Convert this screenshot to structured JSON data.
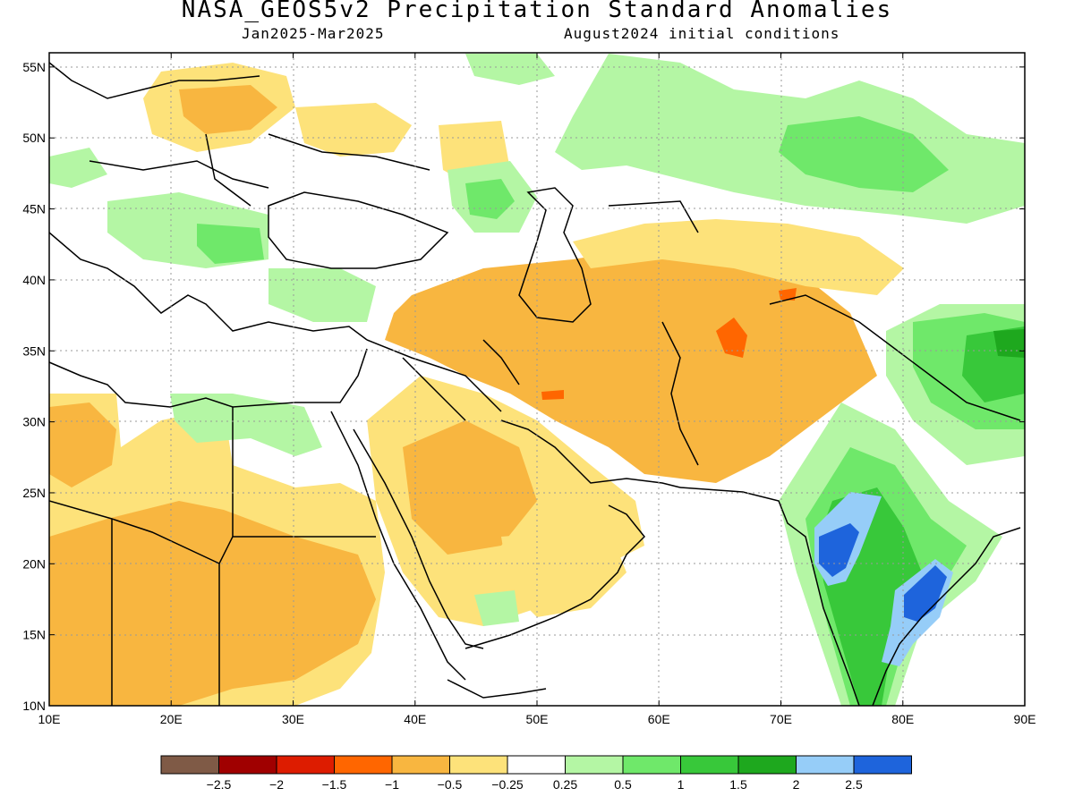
{
  "header": {
    "title": "NASA_GEOS5v2 Precipitation Standard Anomalies",
    "period": "Jan2025-Mar2025",
    "init": "August2024 initial conditions"
  },
  "map": {
    "lat_labels": [
      "55N",
      "50N",
      "45N",
      "40N",
      "35N",
      "30N",
      "25N",
      "20N",
      "15N",
      "10N"
    ],
    "lon_labels": [
      "10E",
      "20E",
      "30E",
      "40E",
      "50E",
      "60E",
      "70E",
      "80E",
      "90E"
    ],
    "lat_values": [
      55,
      50,
      45,
      40,
      35,
      30,
      25,
      20,
      15,
      10
    ],
    "lon_values": [
      10,
      20,
      30,
      40,
      50,
      60,
      70,
      80,
      90
    ],
    "extent": {
      "lon_min": 10,
      "lon_max": 90,
      "lat_min": 10,
      "lat_max": 56
    }
  },
  "colorbar": {
    "colors": [
      "#7f5a46",
      "#a00000",
      "#dd1c00",
      "#ff6600",
      "#f8b640",
      "#fde27a",
      "#ffffff",
      "#b4f6a4",
      "#6fe86a",
      "#38c83a",
      "#1ea81e",
      "#96cdf8",
      "#1e64dc"
    ],
    "labels": [
      "−2.5",
      "−2",
      "−1.5",
      "−1",
      "−0.5",
      "−0.25",
      "0.25",
      "0.5",
      "1",
      "1.5",
      "2",
      "2.5"
    ]
  }
}
